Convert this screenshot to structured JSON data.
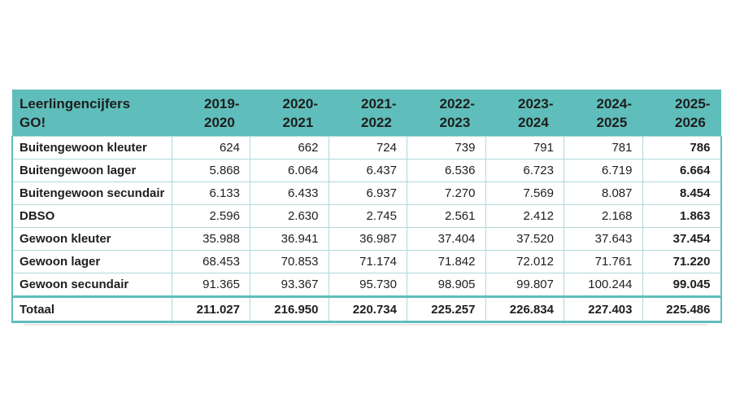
{
  "colors": {
    "header_teal": "#5fbebb",
    "grid_teal": "#acdad8",
    "text": "#1e1e1e",
    "cell_bg": "#ffffff"
  },
  "table": {
    "title_line1": "Leerlingencijfers",
    "title_line2": "GO!",
    "columns": [
      {
        "line1": "2019-",
        "line2": "2020"
      },
      {
        "line1": "2020-",
        "line2": "2021"
      },
      {
        "line1": "2021-",
        "line2": "2022"
      },
      {
        "line1": "2022-",
        "line2": "2023"
      },
      {
        "line1": "2023-",
        "line2": "2024"
      },
      {
        "line1": "2024-",
        "line2": "2025"
      },
      {
        "line1": "2025-",
        "line2": "2026"
      }
    ],
    "rows": [
      {
        "label": "Buitengewoon kleuter",
        "values": [
          "624",
          "662",
          "724",
          "739",
          "791",
          "781",
          "786"
        ]
      },
      {
        "label": "Buitengewoon lager",
        "values": [
          "5.868",
          "6.064",
          "6.437",
          "6.536",
          "6.723",
          "6.719",
          "6.664"
        ]
      },
      {
        "label": "Buitengewoon secundair",
        "values": [
          "6.133",
          "6.433",
          "6.937",
          "7.270",
          "7.569",
          "8.087",
          "8.454"
        ]
      },
      {
        "label": "DBSO",
        "values": [
          "2.596",
          "2.630",
          "2.745",
          "2.561",
          "2.412",
          "2.168",
          "1.863"
        ]
      },
      {
        "label": "Gewoon kleuter",
        "values": [
          "35.988",
          "36.941",
          "36.987",
          "37.404",
          "37.520",
          "37.643",
          "37.454"
        ]
      },
      {
        "label": "Gewoon lager",
        "values": [
          "68.453",
          "70.853",
          "71.174",
          "71.842",
          "72.012",
          "71.761",
          "71.220"
        ]
      },
      {
        "label": "Gewoon secundair",
        "values": [
          "91.365",
          "93.367",
          "95.730",
          "98.905",
          "99.807",
          "100.244",
          "99.045"
        ]
      }
    ],
    "total_row": {
      "label": "Totaal",
      "values": [
        "211.027",
        "216.950",
        "220.734",
        "225.257",
        "226.834",
        "227.403",
        "225.486"
      ]
    }
  },
  "chart_data": {
    "type": "table",
    "title": "Leerlingencijfers GO!",
    "categories": [
      "2019-2020",
      "2020-2021",
      "2021-2022",
      "2022-2023",
      "2023-2024",
      "2024-2025",
      "2025-2026"
    ],
    "series": [
      {
        "name": "Buitengewoon kleuter",
        "values": [
          624,
          662,
          724,
          739,
          791,
          781,
          786
        ]
      },
      {
        "name": "Buitengewoon lager",
        "values": [
          5868,
          6064,
          6437,
          6536,
          6723,
          6719,
          6664
        ]
      },
      {
        "name": "Buitengewoon secundair",
        "values": [
          6133,
          6433,
          6937,
          7270,
          7569,
          8087,
          8454
        ]
      },
      {
        "name": "DBSO",
        "values": [
          2596,
          2630,
          2745,
          2561,
          2412,
          2168,
          1863
        ]
      },
      {
        "name": "Gewoon kleuter",
        "values": [
          35988,
          36941,
          36987,
          37404,
          37520,
          37643,
          37454
        ]
      },
      {
        "name": "Gewoon lager",
        "values": [
          68453,
          70853,
          71174,
          71842,
          72012,
          71761,
          71220
        ]
      },
      {
        "name": "Gewoon secundair",
        "values": [
          91365,
          93367,
          95730,
          98905,
          99807,
          100244,
          99045
        ]
      },
      {
        "name": "Totaal",
        "values": [
          211027,
          216950,
          220734,
          225257,
          226834,
          227403,
          225486
        ]
      }
    ],
    "number_format": "thousands separator: period",
    "layout": "years as columns, education types as rows, total row at bottom, last column bold"
  }
}
